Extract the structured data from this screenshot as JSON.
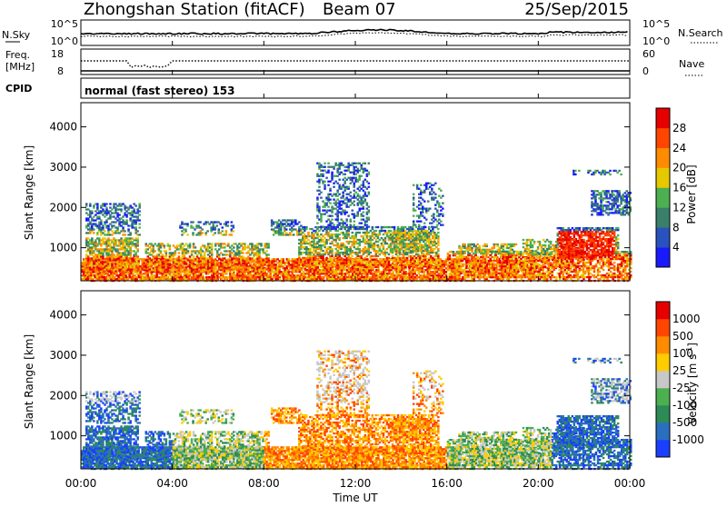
{
  "header": {
    "station": "Zhongshan Station (fitACF)",
    "beam": "Beam 07",
    "date": "25/Sep/2015"
  },
  "top_panels": {
    "nsky": {
      "left_label": "N.Sky",
      "left_ticks": [
        "10^5",
        "10^0"
      ],
      "right_ticks": [
        "10^5",
        "10^0"
      ],
      "right_label": "N.Search"
    },
    "freq": {
      "left_label_1": "Freq.",
      "left_label_2": "[MHz]",
      "left_ticks": [
        "18",
        "8"
      ],
      "right_ticks": [
        "60",
        "0"
      ],
      "right_label": "Nave"
    },
    "cpid": {
      "label": "CPID",
      "text": "normal (fast stereo) 153"
    }
  },
  "x_axis": {
    "ticks": [
      "00:00",
      "04:00",
      "08:00",
      "12:00",
      "16:00",
      "20:00",
      "00:00"
    ],
    "label": "Time UT"
  },
  "colors": {
    "power": [
      "#1a1aff",
      "#2a52be",
      "#3a7f6a",
      "#4caf50",
      "#e6c800",
      "#ff8c00",
      "#ff4500",
      "#e60000"
    ],
    "velocity": [
      "#e60000",
      "#ff4500",
      "#ff8c00",
      "#ffcc00",
      "#c8c8c8",
      "#4caf50",
      "#2e8b57",
      "#2a6fbf",
      "#1a3fff"
    ]
  },
  "chart_data": [
    {
      "type": "heatmap",
      "ylabel": "Slant Range [km]",
      "y_ticks": [
        "1000",
        "2000",
        "3000",
        "4000"
      ],
      "ylim": [
        180,
        4600
      ],
      "xlim": [
        "00:00",
        "24:00"
      ],
      "colorbar": {
        "label": "Power [dB]",
        "ticks": [
          "4",
          "8",
          "12",
          "16",
          "20",
          "24",
          "28"
        ],
        "range": [
          0,
          30
        ]
      }
    },
    {
      "type": "heatmap",
      "ylabel": "Slant Range [km]",
      "y_ticks": [
        "1000",
        "2000",
        "3000",
        "4000"
      ],
      "ylim": [
        180,
        4600
      ],
      "xlim": [
        "00:00",
        "24:00"
      ],
      "colorbar": {
        "label": "Velocity [m s",
        "label_sup": "-1",
        "label_end": "]",
        "ticks": [
          "1000",
          "500",
          "100",
          "25",
          "-25",
          "-100",
          "-500",
          "-1000"
        ]
      }
    }
  ]
}
